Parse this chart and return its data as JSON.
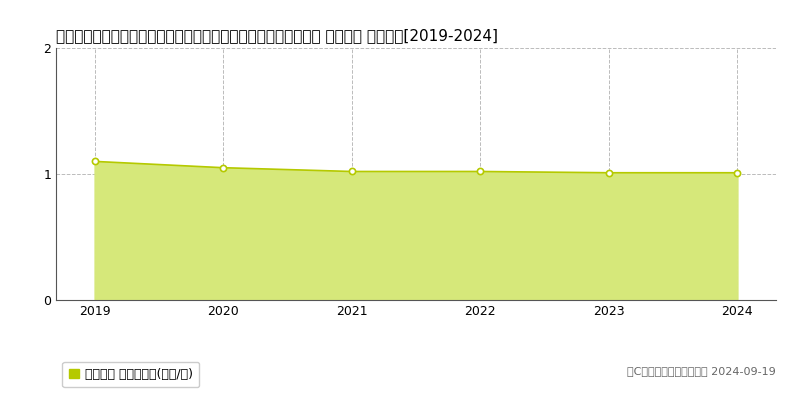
{
  "title": "山形県西置賜郡飯豊町大字手ノ子字上段下ー１６１４番４外１筆 基準地価 地価推移[2019-2024]",
  "years": [
    2019,
    2020,
    2021,
    2022,
    2023,
    2024
  ],
  "values": [
    1.1,
    1.05,
    1.02,
    1.02,
    1.01,
    1.01
  ],
  "ylim": [
    0,
    2
  ],
  "yticks": [
    0,
    1,
    2
  ],
  "line_color": "#b5c900",
  "fill_color": "#d6e87a",
  "fill_alpha": 1.0,
  "marker_color": "#ffffff",
  "marker_edge_color": "#b5c900",
  "grid_color": "#bbbbbb",
  "bg_color": "#ffffff",
  "legend_label": "基準地価 平均坪単価(万円/坪)",
  "legend_box_color": "#b5c900",
  "copyright_text": "（C）土地価格ドットコム 2024-09-19",
  "title_fontsize": 11,
  "axis_fontsize": 9,
  "legend_fontsize": 9
}
